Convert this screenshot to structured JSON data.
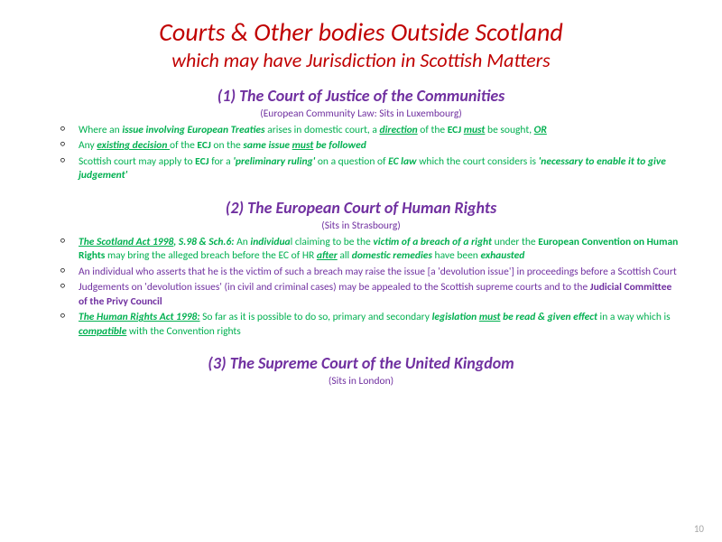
{
  "colors": {
    "red": "#c00000",
    "purple": "#7030a0",
    "green": "#00b050",
    "grey": "#a6a6a6",
    "black": "#000000"
  },
  "title": {
    "line1": "Courts & Other bodies Outside Scotland",
    "line2": "which may have Jurisdiction in Scottish Matters"
  },
  "section1": {
    "heading": "(1)  The Court of Justice of the Communities",
    "sub": "(European Community Law: Sits in Luxembourg)",
    "bullets": {
      "b1": {
        "t1": "Where an ",
        "t2": "issue involving European Treaties",
        "t3": " arises in domestic court, a ",
        "t4": "direction",
        "t5": " of the ",
        "t6": "ECJ",
        "t7": " ",
        "t8": "must",
        "t9": " be sought, ",
        "t10": "OR"
      },
      "b2": {
        "t1": "Any ",
        "t2": "existing decision ",
        "t3": "of the ",
        "t4": "ECJ",
        "t5": " on the ",
        "t6": "same issue ",
        "t7": "must",
        "t8": " be followed"
      },
      "b3": {
        "t1": "Scottish court may apply to ",
        "t2": "ECJ",
        "t3": " for a ",
        "t4": "'preliminary ruling'",
        "t5": " on a question of ",
        "t6": "EC law",
        "t7": " which the court considers is ",
        "t8": "'necessary to enable it to give judgement'"
      }
    }
  },
  "section2": {
    "heading": "(2) The European Court of Human Rights",
    "sub": "(Sits in Strasbourg)",
    "bullets": {
      "b1": {
        "t1": "The Scotland Act 1998",
        "t2": ", ",
        "t3": "S.98 & Sch.6:",
        "t4": " An ",
        "t5": "individua",
        "t6": "l claiming to be the ",
        "t7": "victim of a breach of a right",
        "t8": " under the ",
        "t9": "European Convention on Human Rights",
        "t10": " may bring the alleged breach before the EC of HR ",
        "t11": "after",
        "t12": " all ",
        "t13": "domestic remedies",
        "t14": " have been ",
        "t15": "exhausted"
      },
      "b2": {
        "t1": "An individual who asserts that he is the victim of such a breach may raise the issue [a 'devolution issue'] in proceedings before a Scottish Court"
      },
      "b3": {
        "t1": "Judgements on 'devolution issues' (in civil and criminal cases) may be appealed to the Scottish supreme courts and to the ",
        "t2": "Judicial Committee of the Privy Council"
      },
      "b4": {
        "t1": "The Human Rights Act 1998:",
        "t2": " So far as it is possible to do so, primary and secondary ",
        "t3": "legislation ",
        "t4": "must",
        "t5": " be read & given effect",
        "t6": " in a way which is ",
        "t7": "compatible",
        "t8": " with the Convention rights"
      }
    }
  },
  "section3": {
    "heading": "(3) The Supreme Court of the United Kingdom",
    "sub": "(Sits in London)"
  },
  "pageNumber": "10"
}
